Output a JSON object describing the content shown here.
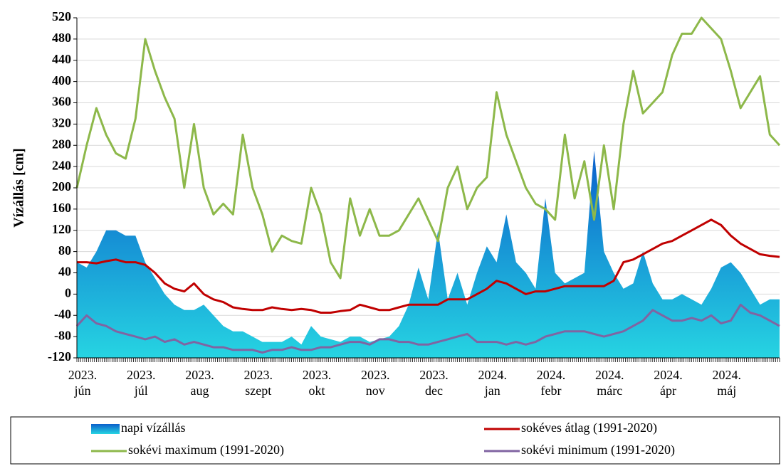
{
  "chart_data": {
    "type": "line",
    "ylabel": "Vízállás [cm]",
    "ylim": [
      -120,
      520
    ],
    "yticks": [
      -120,
      -80,
      -40,
      0,
      40,
      80,
      120,
      160,
      200,
      240,
      280,
      320,
      360,
      400,
      440,
      480,
      520
    ],
    "grid": true,
    "legend": "bottom",
    "categories": [
      "2023. jún",
      null,
      null,
      null,
      null,
      null,
      "2023. júl",
      null,
      null,
      null,
      null,
      null,
      "2023. aug",
      null,
      null,
      null,
      null,
      null,
      "2023. szept",
      null,
      null,
      null,
      null,
      null,
      "2023. okt",
      null,
      null,
      null,
      null,
      null,
      "2023. nov",
      null,
      null,
      null,
      null,
      null,
      "2023. dec",
      null,
      null,
      null,
      null,
      null,
      "2024. jan",
      null,
      null,
      null,
      null,
      null,
      "2024. febr",
      null,
      null,
      null,
      null,
      null,
      "2024. márc",
      null,
      null,
      null,
      null,
      null,
      "2024. ápr",
      null,
      null,
      null,
      null,
      null,
      "2024. máj",
      null,
      null,
      null,
      null,
      null,
      null
    ],
    "series": [
      {
        "name": "napi vízállás",
        "type": "area",
        "color": [
          "#0b5fcb",
          "#26d4e2"
        ],
        "values": [
          60,
          50,
          80,
          120,
          120,
          110,
          110,
          60,
          30,
          0,
          -20,
          -30,
          -30,
          -20,
          -40,
          -60,
          -70,
          -70,
          -80,
          -90,
          -90,
          -90,
          -80,
          -95,
          -60,
          -80,
          -85,
          -90,
          -80,
          -80,
          -90,
          -85,
          -80,
          -60,
          -20,
          50,
          -10,
          120,
          -10,
          40,
          -20,
          40,
          90,
          60,
          150,
          60,
          40,
          10,
          180,
          40,
          20,
          30,
          40,
          270,
          80,
          40,
          10,
          20,
          80,
          20,
          -10,
          -10,
          0,
          -10,
          -20,
          10,
          50,
          60,
          40,
          10,
          -20,
          -10,
          -10
        ]
      },
      {
        "name": "sokéves átlag (1991-2020)",
        "type": "line",
        "color": "#c00000",
        "values": [
          60,
          60,
          58,
          62,
          65,
          60,
          60,
          55,
          40,
          20,
          10,
          5,
          20,
          0,
          -10,
          -15,
          -25,
          -28,
          -30,
          -30,
          -25,
          -28,
          -30,
          -28,
          -30,
          -35,
          -35,
          -32,
          -30,
          -20,
          -25,
          -30,
          -30,
          -25,
          -20,
          -20,
          -20,
          -20,
          -10,
          -10,
          -10,
          0,
          10,
          25,
          20,
          10,
          0,
          5,
          5,
          10,
          15,
          15,
          15,
          15,
          15,
          25,
          60,
          65,
          75,
          85,
          95,
          100,
          110,
          120,
          130,
          140,
          130,
          110,
          95,
          85,
          75,
          72,
          70
        ]
      },
      {
        "name": "sokévi maximum (1991-2020)",
        "type": "line",
        "color": "#8db84a",
        "values": [
          200,
          280,
          350,
          300,
          265,
          255,
          330,
          480,
          420,
          370,
          330,
          200,
          320,
          200,
          150,
          170,
          150,
          300,
          200,
          150,
          80,
          110,
          100,
          95,
          200,
          150,
          60,
          30,
          180,
          110,
          160,
          110,
          110,
          120,
          150,
          180,
          140,
          100,
          200,
          240,
          160,
          200,
          220,
          380,
          300,
          250,
          200,
          170,
          160,
          140,
          300,
          180,
          250,
          140,
          280,
          160,
          320,
          420,
          340,
          360,
          380,
          450,
          490,
          490,
          520,
          500,
          480,
          420,
          350,
          380,
          410,
          300,
          280
        ]
      },
      {
        "name": "sokévi minimum (1991-2020)",
        "type": "line",
        "color": "#8064a2",
        "values": [
          -60,
          -40,
          -55,
          -60,
          -70,
          -75,
          -80,
          -85,
          -80,
          -90,
          -85,
          -95,
          -90,
          -95,
          -100,
          -100,
          -105,
          -105,
          -105,
          -110,
          -105,
          -105,
          -100,
          -105,
          -105,
          -100,
          -100,
          -95,
          -90,
          -90,
          -95,
          -85,
          -85,
          -90,
          -90,
          -95,
          -95,
          -90,
          -85,
          -80,
          -75,
          -90,
          -90,
          -90,
          -95,
          -90,
          -95,
          -90,
          -80,
          -75,
          -70,
          -70,
          -70,
          -75,
          -80,
          -75,
          -70,
          -60,
          -50,
          -30,
          -40,
          -50,
          -50,
          -45,
          -50,
          -40,
          -55,
          -50,
          -20,
          -35,
          -40,
          -50,
          -60
        ]
      }
    ]
  }
}
